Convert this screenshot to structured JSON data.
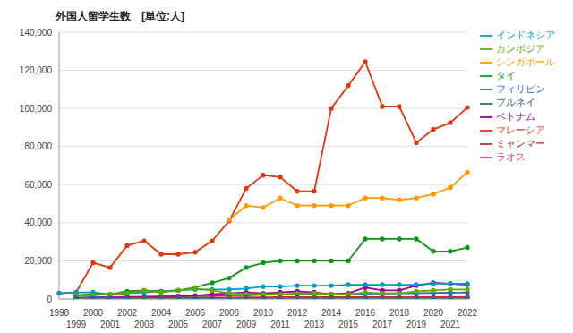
{
  "chart_data": {
    "type": "line",
    "title": "外国人留学生数　[単位:人]",
    "categories": [
      "1998",
      "1999",
      "2000",
      "2001",
      "2002",
      "2003",
      "2004",
      "2005",
      "2006",
      "2007",
      "2008",
      "2009",
      "2010",
      "2011",
      "2012",
      "2013",
      "2014",
      "2015",
      "2016",
      "2017",
      "2018",
      "2019",
      "2020",
      "2021",
      "2022"
    ],
    "series": [
      {
        "name": "フィリピン",
        "color": "#3366cc",
        "values": [
          null,
          800,
          900,
          1000,
          1100,
          1200,
          1300,
          1400,
          1500,
          1600,
          1800,
          2000,
          2200,
          2300,
          2400,
          2500,
          2600,
          2700,
          2800,
          2900,
          3000,
          3000,
          3200,
          3300,
          3400
        ]
      },
      {
        "name": "マレーシア",
        "color": "#dc3912",
        "values": [
          3000,
          3500,
          19000,
          16500,
          28000,
          30500,
          23500,
          23500,
          24500,
          30500,
          41000,
          58000,
          65000,
          64000,
          56500,
          56500,
          100000,
          112000,
          124500,
          101000,
          101000,
          82000,
          89000,
          92500,
          100500
        ]
      },
      {
        "name": "シンガポール",
        "color": "#ff9900",
        "values": [
          null,
          null,
          null,
          null,
          null,
          null,
          null,
          null,
          null,
          null,
          41500,
          49000,
          48000,
          53000,
          49000,
          49000,
          49000,
          49000,
          53000,
          53000,
          52000,
          53000,
          55000,
          58500,
          66500
        ]
      },
      {
        "name": "タイ",
        "color": "#109618",
        "values": [
          null,
          2000,
          2500,
          2500,
          4000,
          4500,
          4000,
          4500,
          6000,
          8500,
          11000,
          16500,
          19000,
          20000,
          20000,
          20000,
          20000,
          20000,
          31500,
          31500,
          31500,
          31500,
          25000,
          25000,
          27000
        ]
      },
      {
        "name": "ベトナム",
        "color": "#990099",
        "values": [
          null,
          500,
          700,
          800,
          1000,
          1000,
          1200,
          1500,
          1800,
          2500,
          3000,
          3500,
          3000,
          3500,
          4000,
          3500,
          2500,
          3000,
          6000,
          4500,
          4500,
          7000,
          8500,
          8000,
          7500
        ]
      },
      {
        "name": "インドネシア",
        "color": "#0099c6",
        "values": [
          3000,
          3500,
          3500,
          2500,
          3000,
          3500,
          4000,
          4500,
          5000,
          5000,
          5000,
          5500,
          6500,
          6500,
          7000,
          7000,
          7000,
          7500,
          7500,
          7500,
          7500,
          7500,
          8000,
          8000,
          8000
        ]
      },
      {
        "name": "ラオス",
        "color": "#dd4477",
        "values": [
          null,
          300,
          300,
          300,
          300,
          300,
          300,
          300,
          400,
          400,
          400,
          400,
          500,
          500,
          500,
          500,
          500,
          500,
          500,
          500,
          500,
          500,
          500,
          500,
          500
        ]
      },
      {
        "name": "カンボジア",
        "color": "#66aa00",
        "values": [
          null,
          1500,
          2000,
          2500,
          3000,
          4500,
          3500,
          4500,
          5500,
          4500,
          3000,
          2500,
          2500,
          2500,
          3000,
          3000,
          2500,
          2500,
          3500,
          3000,
          3000,
          4000,
          4500,
          5000,
          5000
        ]
      },
      {
        "name": "ミャンマー",
        "color": "#b82e2e",
        "values": [
          null,
          500,
          500,
          500,
          600,
          600,
          600,
          700,
          700,
          800,
          800,
          900,
          900,
          1000,
          1000,
          1000,
          1000,
          1000,
          1000,
          1000,
          1000,
          1000,
          1000,
          1000,
          1000
        ]
      },
      {
        "name": "ブルネイ",
        "color": "#316395",
        "values": [
          null,
          100,
          100,
          100,
          100,
          100,
          100,
          100,
          100,
          100,
          100,
          100,
          100,
          100,
          100,
          100,
          100,
          100,
          100,
          100,
          100,
          100,
          100,
          100,
          100
        ]
      }
    ],
    "ylim": [
      0,
      140000
    ],
    "yticks": [
      0,
      {
        "value": 20000,
        "label": "20,000"
      },
      {
        "value": 40000,
        "label": "40,000"
      },
      {
        "value": 60000,
        "label": "60,000"
      },
      {
        "value": 80000,
        "label": "80,000"
      },
      {
        "value": 100000,
        "label": "100,000"
      },
      {
        "value": 120000,
        "label": "120,000"
      },
      {
        "value": 140000,
        "label": "140,000"
      }
    ],
    "grid": true,
    "legend": "right",
    "marker": "circle"
  }
}
